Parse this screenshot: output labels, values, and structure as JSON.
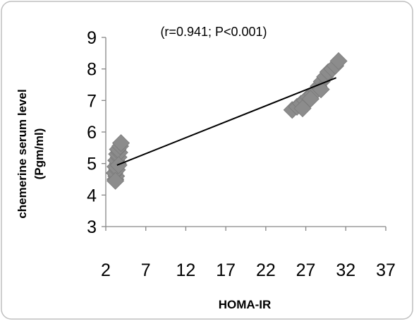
{
  "chart_data": {
    "type": "scatter",
    "annotation": "(r=0.941; P<0.001)",
    "xlabel": "HOMA-IR",
    "ylabel_line1": "chemerine serum level",
    "ylabel_line2": "(Pgm/ml)",
    "xlim": [
      2,
      37
    ],
    "ylim": [
      3,
      9
    ],
    "xticks": [
      2,
      7,
      12,
      17,
      22,
      27,
      32,
      37
    ],
    "yticks": [
      3,
      4,
      5,
      6,
      7,
      8,
      9
    ],
    "xtick_labels": [
      "2",
      "7",
      "12",
      "17",
      "22",
      "27",
      "32",
      "37"
    ],
    "ytick_labels": [
      "3",
      "4",
      "5",
      "6",
      "7",
      "8",
      "9"
    ],
    "grid": false,
    "legend": "none",
    "marker_color": "#8c8c8c",
    "trendline_color": "#000000",
    "trendline": {
      "x": [
        3.4,
        30.8
      ],
      "y": [
        4.95,
        7.72
      ]
    },
    "points": [
      {
        "x": 3.2,
        "y": 4.5
      },
      {
        "x": 3.3,
        "y": 4.6
      },
      {
        "x": 3.1,
        "y": 4.7
      },
      {
        "x": 3.4,
        "y": 4.8
      },
      {
        "x": 3.2,
        "y": 4.9
      },
      {
        "x": 3.5,
        "y": 5.0
      },
      {
        "x": 3.3,
        "y": 5.1
      },
      {
        "x": 3.6,
        "y": 5.2
      },
      {
        "x": 3.4,
        "y": 5.3
      },
      {
        "x": 3.7,
        "y": 5.35
      },
      {
        "x": 3.5,
        "y": 5.45
      },
      {
        "x": 3.8,
        "y": 5.55
      },
      {
        "x": 3.9,
        "y": 5.65
      },
      {
        "x": 3.2,
        "y": 4.45
      },
      {
        "x": 3.6,
        "y": 4.95
      },
      {
        "x": 25.3,
        "y": 6.7
      },
      {
        "x": 25.9,
        "y": 6.8
      },
      {
        "x": 26.4,
        "y": 6.9
      },
      {
        "x": 26.9,
        "y": 7.0
      },
      {
        "x": 27.3,
        "y": 7.1
      },
      {
        "x": 27.8,
        "y": 7.2
      },
      {
        "x": 28.3,
        "y": 7.3
      },
      {
        "x": 28.6,
        "y": 7.45
      },
      {
        "x": 29.0,
        "y": 7.6
      },
      {
        "x": 29.4,
        "y": 7.75
      },
      {
        "x": 29.8,
        "y": 7.9
      },
      {
        "x": 30.3,
        "y": 8.0
      },
      {
        "x": 30.7,
        "y": 8.1
      },
      {
        "x": 31.1,
        "y": 8.25
      },
      {
        "x": 26.6,
        "y": 6.75
      },
      {
        "x": 27.6,
        "y": 7.05
      },
      {
        "x": 28.9,
        "y": 7.35
      }
    ]
  }
}
